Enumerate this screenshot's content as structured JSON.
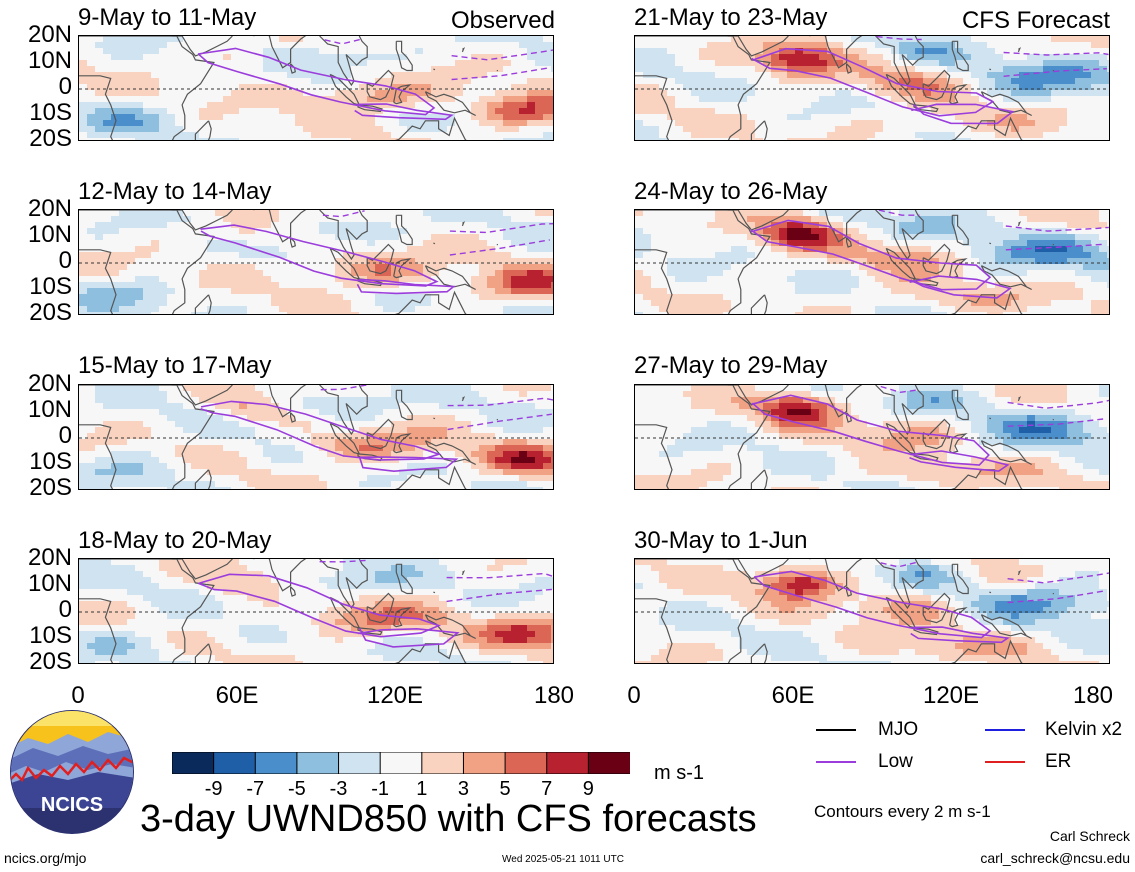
{
  "header": {
    "observed_label": "Observed",
    "forecast_label": "CFS Forecast"
  },
  "panels": [
    {
      "title": "9-May to 11-May"
    },
    {
      "title": "12-May to 14-May"
    },
    {
      "title": "15-May to 17-May"
    },
    {
      "title": "18-May to 20-May"
    },
    {
      "title": "21-May to 23-May"
    },
    {
      "title": "24-May to 26-May"
    },
    {
      "title": "27-May to 29-May"
    },
    {
      "title": "30-May to 1-Jun"
    }
  ],
  "chart_data": {
    "type": "heatmap",
    "title": "3-day UWND850 with CFS forecasts",
    "lat_ticks": [
      "20N",
      "10N",
      "0",
      "10S",
      "20S"
    ],
    "lon_ticks": [
      "0",
      "60E",
      "120E",
      "180"
    ],
    "lat_range": [
      -20,
      20
    ],
    "lon_range": [
      0,
      180
    ],
    "colorbar": {
      "ticks": [
        "-9",
        "-7",
        "-5",
        "-3",
        "-1",
        "1",
        "3",
        "5",
        "7",
        "9"
      ],
      "units": "m s-1",
      "colors": [
        "#0b2a5c",
        "#1f5fa8",
        "#4a8fcb",
        "#8fbfdf",
        "#cfe3f0",
        "#f7f7f7",
        "#f9d3bf",
        "#f1a285",
        "#dc6656",
        "#b82230",
        "#6a0014"
      ]
    },
    "contour_note": "Contours every 2 m s-1",
    "legend": [
      {
        "label": "MJO",
        "color": "#000000"
      },
      {
        "label": "Kelvin x2",
        "color": "#1f1fe0"
      },
      {
        "label": "Low",
        "color": "#9b3ddc"
      },
      {
        "label": "ER",
        "color": "#e02020"
      }
    ]
  },
  "footer": {
    "org": "NCICS",
    "url": "ncics.org/mjo",
    "timestamp": "Wed 2025-05-21 1011 UTC",
    "author": "Carl Schreck",
    "email": "carl_schreck@ncsu.edu"
  }
}
